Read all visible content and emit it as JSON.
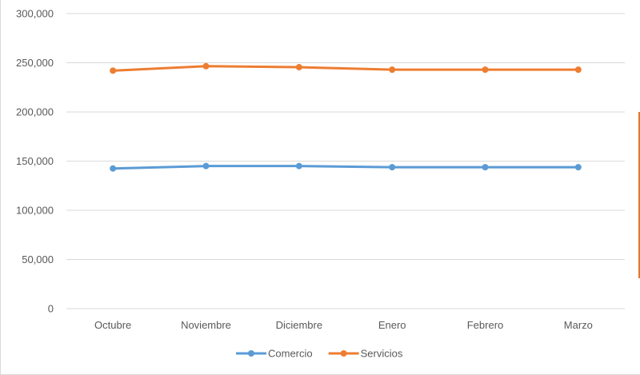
{
  "chart_data": {
    "type": "line",
    "categories": [
      "Octubre",
      "Noviembre",
      "Diciembre",
      "Enero",
      "Febrero",
      "Marzo"
    ],
    "series": [
      {
        "name": "Comercio",
        "values": [
          142500,
          145000,
          145000,
          143800,
          143800,
          143800
        ],
        "color": "#5b9bd5"
      },
      {
        "name": "Servicios",
        "values": [
          242000,
          246500,
          245500,
          243000,
          243000,
          243000
        ],
        "color": "#ed7d31"
      }
    ],
    "y_ticks": [
      "0",
      "50,000",
      "100,000",
      "150,000",
      "200,000",
      "250,000",
      "300,000"
    ],
    "ylim": [
      0,
      300000
    ],
    "grid": true,
    "legend": "bottom-center"
  }
}
